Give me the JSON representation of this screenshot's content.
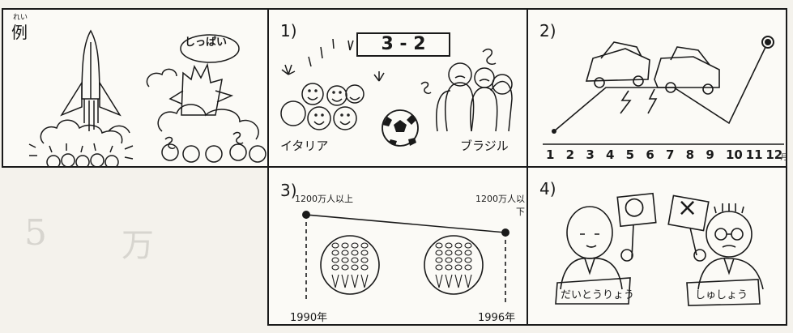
{
  "colors": {
    "ink": "#1a1a1a",
    "paper": "#fbfaf6",
    "page": "#f4f2ec",
    "faint": "#d7d5cf"
  },
  "background_marks": [
    "5",
    "万"
  ],
  "panel_example": {
    "ruby": "れい",
    "label": "例",
    "bubble": "しっぱい"
  },
  "panel_1": {
    "number": "1)",
    "scoreboard": "3 - 2",
    "team_left": "イタリア",
    "team_right": "ブラジル",
    "icons": [
      "soccer-ball-icon"
    ]
  },
  "panel_2": {
    "number": "2)",
    "months": [
      "1",
      "2",
      "3",
      "4",
      "5",
      "6",
      "7",
      "8",
      "9",
      "10",
      "11",
      "12"
    ],
    "month_unit": "月",
    "icons": [
      "crashed-car-icon",
      "lightning-icon"
    ]
  },
  "panel_3": {
    "number": "3)",
    "value_left": "1200万人以上",
    "value_right": "1200万人以下",
    "year_left": "1990年",
    "year_right": "1996年"
  },
  "panel_4": {
    "number": "4)",
    "sign_left": "○",
    "sign_right": "×",
    "sash_left": "だいとうりょう",
    "sash_right": "しゅしょう"
  }
}
